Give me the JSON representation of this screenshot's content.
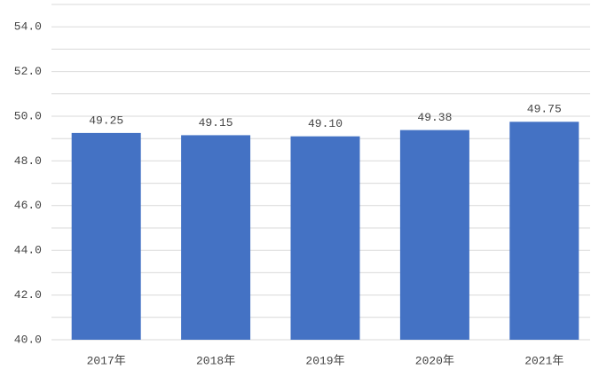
{
  "chart_data": {
    "type": "bar",
    "categories": [
      "2017年",
      "2018年",
      "2019年",
      "2020年",
      "2021年"
    ],
    "values": [
      49.25,
      49.15,
      49.1,
      49.38,
      49.75
    ],
    "value_labels": [
      "49.25",
      "49.15",
      "49.10",
      "49.38",
      "49.75"
    ],
    "color": "#4472c4",
    "ylim": [
      40,
      55
    ],
    "yticks": [
      {
        "value": 40,
        "label": "40.0"
      },
      {
        "value": 42,
        "label": "42.0"
      },
      {
        "value": 44,
        "label": "44.0"
      },
      {
        "value": 46,
        "label": "46.0"
      },
      {
        "value": 48,
        "label": "48.0"
      },
      {
        "value": 50,
        "label": "50.0"
      },
      {
        "value": 52,
        "label": "52.0"
      },
      {
        "value": 54,
        "label": "54.0"
      }
    ],
    "minor_gridlines": [
      41,
      43,
      45,
      47,
      49,
      51,
      53,
      55
    ],
    "grid": true
  }
}
